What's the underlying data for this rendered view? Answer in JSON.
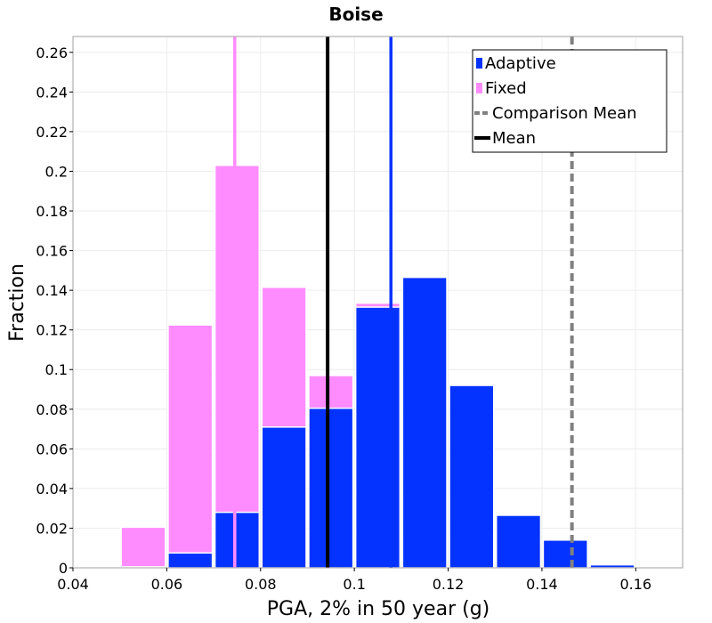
{
  "chart_data": {
    "type": "bar",
    "title": "Boise",
    "xlabel": "PGA, 2% in 50 year (g)",
    "ylabel": "Fraction",
    "xlim": [
      0.04,
      0.17
    ],
    "ylim": [
      0,
      0.268
    ],
    "xticks": [
      "0.04",
      "0.06",
      "0.08",
      "0.1",
      "0.12",
      "0.14",
      "0.16"
    ],
    "yticks": [
      "0",
      "0.02",
      "0.04",
      "0.06",
      "0.08",
      "0.1",
      "0.12",
      "0.14",
      "0.16",
      "0.18",
      "0.2",
      "0.22",
      "0.24",
      "0.26"
    ],
    "bin_width": 0.01,
    "bins": [
      {
        "start": 0.04,
        "end": 0.05,
        "fixed": 0.0005,
        "adaptive": 0.0
      },
      {
        "start": 0.05,
        "end": 0.06,
        "fixed": 0.0205,
        "adaptive": 0.0005
      },
      {
        "start": 0.06,
        "end": 0.07,
        "fixed": 0.1225,
        "adaptive": 0.0075
      },
      {
        "start": 0.07,
        "end": 0.08,
        "fixed": 0.203,
        "adaptive": 0.028
      },
      {
        "start": 0.08,
        "end": 0.09,
        "fixed": 0.1415,
        "adaptive": 0.071
      },
      {
        "start": 0.09,
        "end": 0.1,
        "fixed": 0.097,
        "adaptive": 0.0805
      },
      {
        "start": 0.1,
        "end": 0.11,
        "fixed": 0.1335,
        "adaptive": 0.1315
      },
      {
        "start": 0.11,
        "end": 0.12,
        "fixed": 0.0,
        "adaptive": 0.1465
      },
      {
        "start": 0.12,
        "end": 0.13,
        "fixed": 0.0,
        "adaptive": 0.092
      },
      {
        "start": 0.13,
        "end": 0.14,
        "fixed": 0.0,
        "adaptive": 0.0265
      },
      {
        "start": 0.14,
        "end": 0.15,
        "fixed": 0.0,
        "adaptive": 0.014
      },
      {
        "start": 0.15,
        "end": 0.16,
        "fixed": 0.0,
        "adaptive": 0.0015
      },
      {
        "start": 0.16,
        "end": 0.17,
        "fixed": 0.0,
        "adaptive": 0.0005
      }
    ],
    "series": [
      {
        "name": "Adaptive",
        "color": "#0432ff"
      },
      {
        "name": "Fixed",
        "color": "#ff8cff"
      }
    ],
    "vertical_lines": [
      {
        "series": "Fixed",
        "x": 0.0745,
        "color": "#ff8cff",
        "style": "solid"
      },
      {
        "series": "Adaptive",
        "x": 0.1078,
        "color": "#0432ff",
        "style": "solid"
      },
      {
        "series": "Mean",
        "x": 0.0943,
        "color": "#000000",
        "style": "solid"
      },
      {
        "series": "Comparison Mean",
        "x": 0.1464,
        "color": "#808080",
        "style": "dashed"
      }
    ],
    "legend": {
      "position": "top-right",
      "entries": [
        {
          "label": "Adaptive",
          "kind": "box",
          "color": "#0432ff"
        },
        {
          "label": "Fixed",
          "kind": "box",
          "color": "#ff8cff"
        },
        {
          "label": "Comparison Mean",
          "kind": "dashed-line",
          "color": "#808080"
        },
        {
          "label": "Mean",
          "kind": "line",
          "color": "#000000"
        }
      ]
    },
    "grid": true
  }
}
